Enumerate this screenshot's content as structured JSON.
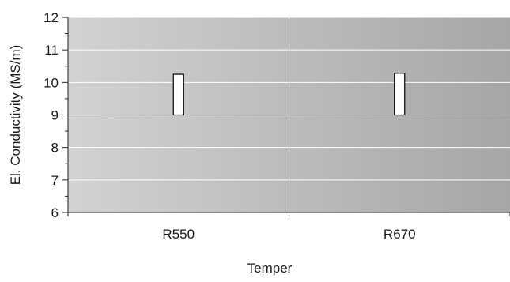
{
  "chart_data": {
    "type": "bar",
    "categories": [
      "R550",
      "R670"
    ],
    "series": [
      {
        "low": 9.0,
        "high": 10.25
      },
      {
        "low": 9.0,
        "high": 10.28
      }
    ],
    "xlabel": "Temper",
    "ylabel": "El. Conductivity (MS/m)",
    "ylim": [
      6,
      12
    ],
    "yticks": [
      6,
      7,
      8,
      9,
      10,
      11,
      12
    ],
    "grid": true,
    "colors": {
      "plot_left": "#d2d2d2",
      "plot_right": "#a6a6a6",
      "bar_fill": "#ffffff",
      "bar_stroke": "#000000",
      "grid": "#ffffff"
    }
  }
}
